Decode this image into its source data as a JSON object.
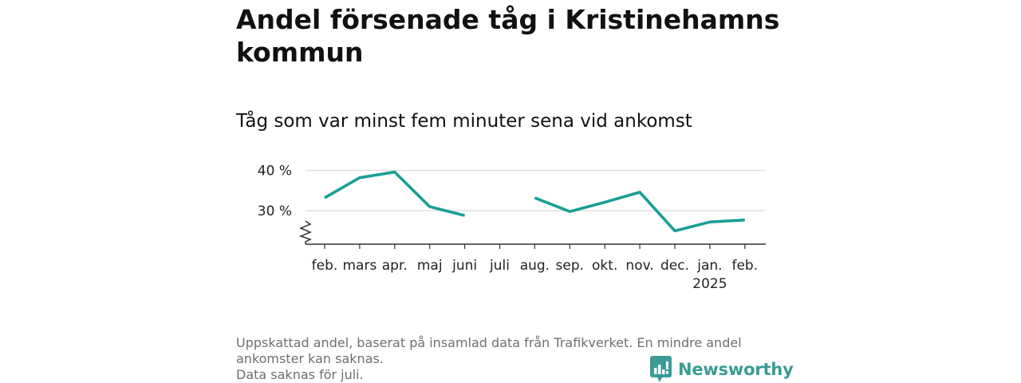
{
  "title": "Andel försenade tåg i Kristinehamns kommun",
  "subtitle": "Tåg som var minst fem minuter sena vid ankomst",
  "footer": {
    "note_line1": "Uppskattad andel, baserat på insamlad data från Trafikverket. En mindre andel",
    "note_line2": "ankomster kan saknas.",
    "note_line3": "Data saknas för juli."
  },
  "brand": {
    "name": "Newsworthy",
    "icon": "newsworthy-logo-icon",
    "color": "#3a9c94"
  },
  "colors": {
    "line": "#1a9e96",
    "grid": "#dddddd",
    "axis": "#333333"
  },
  "chart_data": {
    "type": "line",
    "title": "Andel försenade tåg i Kristinehamns kommun",
    "subtitle": "Tåg som var minst fem minuter sena vid ankomst",
    "xlabel": "",
    "ylabel": "",
    "categories": [
      "feb.",
      "mars",
      "apr.",
      "maj",
      "juni",
      "juli",
      "aug.",
      "sep.",
      "okt.",
      "nov.",
      "dec.",
      "jan.",
      "feb."
    ],
    "x_sublabels": [
      "",
      "",
      "",
      "",
      "",
      "",
      "",
      "",
      "",
      "",
      "",
      "2025",
      ""
    ],
    "series": [
      {
        "values": [
          33.2,
          38.2,
          39.6,
          31.0,
          28.8,
          null,
          33.2,
          29.8,
          32.1,
          34.6,
          25.0,
          27.2,
          27.7
        ]
      }
    ],
    "y_ticks": [
      30,
      40
    ],
    "y_tick_labels": [
      "30 %",
      "40 %"
    ],
    "ylim": [
      21.7,
      41.7
    ],
    "axis_break": true,
    "grid": true,
    "legend": "none"
  }
}
